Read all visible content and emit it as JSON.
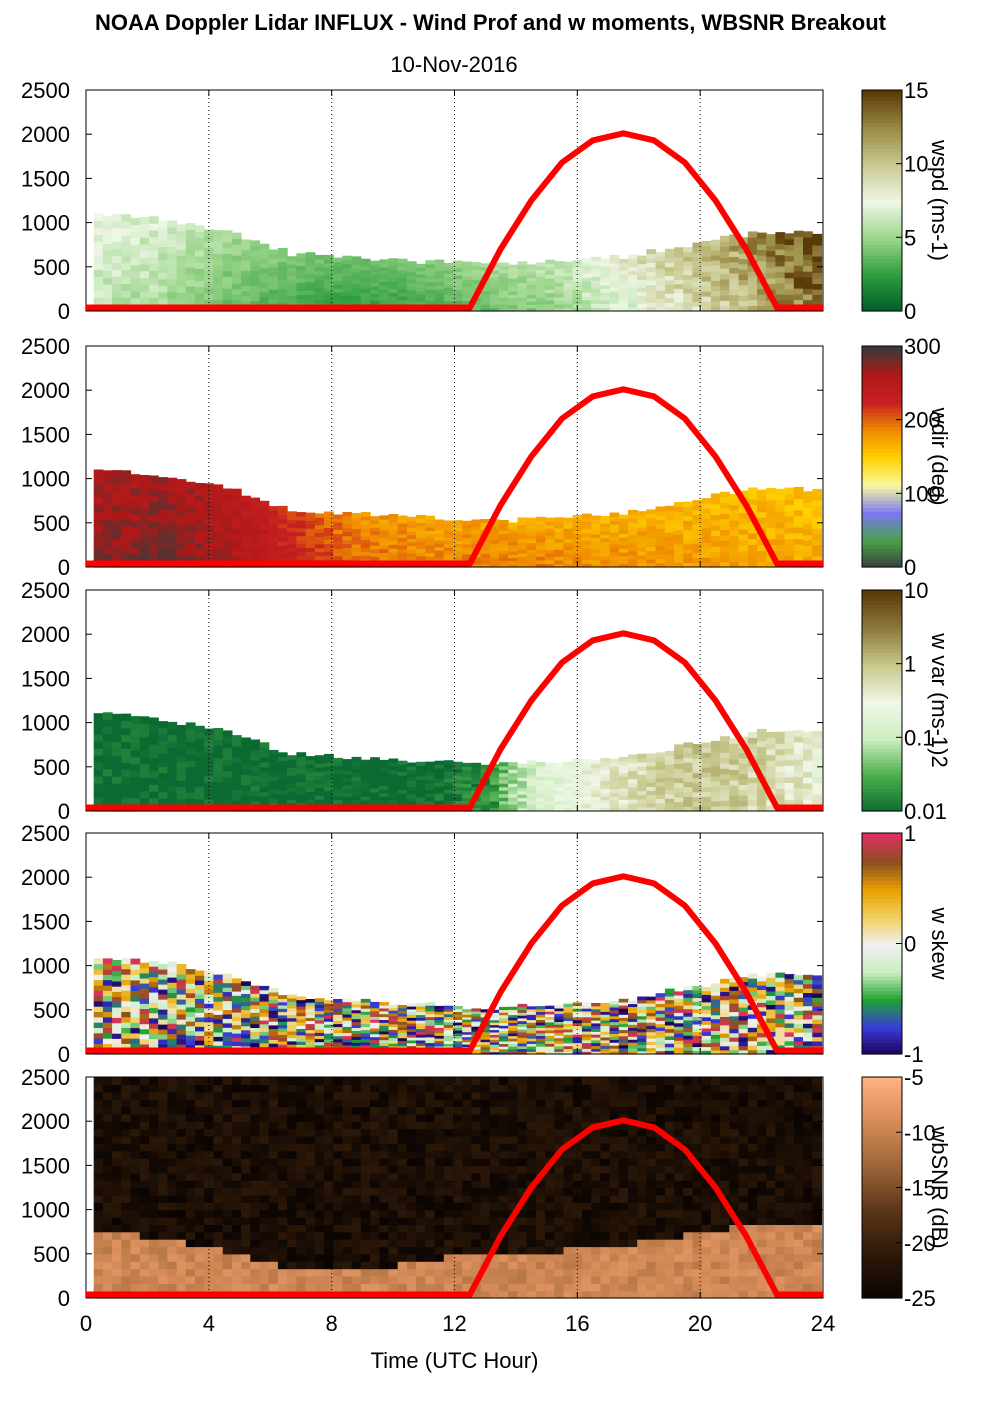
{
  "title": "NOAA Doppler Lidar INFLUX - Wind Prof and w moments, WBSNR Breakout",
  "date": "10-Nov-2016",
  "chart_data": {
    "type": "heatmap",
    "xlabel": "Time (UTC Hour)",
    "xlim": [
      0,
      24
    ],
    "xticks": [
      0,
      4,
      8,
      12,
      16,
      20,
      24
    ],
    "ylim": [
      0,
      2500
    ],
    "yticks": [
      0,
      500,
      1000,
      1500,
      2000,
      2500
    ],
    "vertical_grid": "dotted",
    "overlay": {
      "name": "solar elevation curve",
      "color": "#ff0000",
      "x": [
        0,
        12.5,
        13.5,
        14.5,
        15.5,
        16.5,
        17.5,
        18.5,
        19.5,
        20.5,
        21.5,
        22.5,
        24
      ],
      "y": [
        40,
        40,
        700,
        1250,
        1680,
        1930,
        2010,
        1930,
        1680,
        1250,
        700,
        40,
        40
      ]
    },
    "panels": [
      {
        "colorbar_label": "wspd (ms-1)",
        "clim": [
          0,
          15
        ],
        "colorbar_ticks": [
          "0",
          "5",
          "10",
          "15"
        ],
        "colors": [
          "#005a2a",
          "#2c9c3c",
          "#9ad58a",
          "#eef7e6",
          "#c9c990",
          "#9a8a45",
          "#5a3a08"
        ],
        "top_height": [
          1100,
          1050,
          900,
          650,
          600,
          560,
          520,
          560,
          620,
          760,
          900,
          880
        ],
        "value_profile": [
          6,
          5.5,
          4,
          3,
          2.5,
          3,
          4,
          5,
          7,
          9,
          11,
          14
        ],
        "base": "2 hours"
      },
      {
        "colorbar_label": "wdir (deg)",
        "clim": [
          0,
          360
        ],
        "colorbar_ticks": [
          "0",
          "100",
          "200",
          "300"
        ],
        "colors": [
          "#3a3a3a",
          "#4aa04a",
          "#7a7af0",
          "#f8f8a0",
          "#ffd200",
          "#f08c00",
          "#c82020",
          "#b01818",
          "#3a3a3a"
        ],
        "top_height": [
          1100,
          1050,
          900,
          650,
          600,
          560,
          520,
          560,
          620,
          760,
          900,
          880
        ],
        "value_profile": [
          330,
          340,
          320,
          280,
          240,
          230,
          230,
          225,
          220,
          215,
          210,
          205
        ]
      },
      {
        "colorbar_label": "w var (ms-1)2",
        "clim": [
          0.01,
          10
        ],
        "colorbar_ticks": [
          "0.01",
          "0.1",
          "1",
          "10"
        ],
        "colors": [
          "#0a6a32",
          "#4cae4c",
          "#cfeec2",
          "#f0f7e8",
          "#c8c88c",
          "#8c7a3c",
          "#5a3a08"
        ],
        "top_height": [
          1100,
          1050,
          900,
          650,
          600,
          560,
          520,
          560,
          620,
          760,
          900,
          880
        ],
        "value_profile": [
          0.01,
          0.01,
          0.01,
          0.01,
          0.01,
          0.01,
          0.02,
          0.2,
          0.6,
          1.0,
          0.8,
          0.3
        ]
      },
      {
        "colorbar_label": "w skew",
        "clim": [
          -1,
          1
        ],
        "colorbar_ticks": [
          "-1",
          "0",
          "1"
        ],
        "colors": [
          "#1a0050",
          "#3a3adc",
          "#20a030",
          "#c8eec0",
          "#f0f0f0",
          "#f0d060",
          "#e8a000",
          "#8a5020",
          "#e03060"
        ],
        "top_height": [
          1100,
          1050,
          900,
          650,
          600,
          560,
          520,
          560,
          620,
          760,
          900,
          880
        ],
        "value_profile": "random"
      },
      {
        "colorbar_label": "wbSNR (dB)",
        "clim": [
          -25,
          -5
        ],
        "colorbar_ticks": [
          "-25",
          "-20",
          "-15",
          "-10",
          "-5"
        ],
        "colors": [
          "#0a0402",
          "#2c1808",
          "#5a3418",
          "#9c6438",
          "#d48a58",
          "#ffb080"
        ],
        "top_height": [
          1100,
          1050,
          900,
          650,
          600,
          560,
          520,
          560,
          620,
          760,
          900,
          880
        ]
      }
    ]
  }
}
